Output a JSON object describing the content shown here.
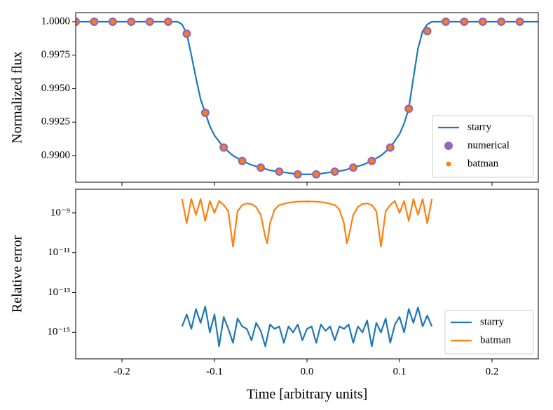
{
  "chart_data": [
    {
      "type": "line",
      "ylabel": "Normalized flux",
      "xlim": [
        -0.25,
        0.25
      ],
      "ylim": [
        0.98801,
        1.00068
      ],
      "yticks": [
        {
          "value": 0.99,
          "label": "0.9900"
        },
        0.9925,
        {
          "value": 0.995,
          "label": "0.9950"
        },
        0.9975,
        {
          "value": 1.0,
          "label": "1.0000"
        }
      ],
      "legend": "lower right",
      "series": [
        {
          "name": "starry",
          "color": "#1f77b4",
          "style": "line",
          "x": [
            -0.25,
            -0.2,
            -0.15,
            -0.14,
            -0.135,
            -0.13,
            -0.125,
            -0.12,
            -0.115,
            -0.11,
            -0.105,
            -0.1,
            -0.09,
            -0.08,
            -0.07,
            -0.06,
            -0.05,
            -0.04,
            -0.03,
            -0.02,
            -0.01,
            0,
            0.01,
            0.02,
            0.03,
            0.04,
            0.05,
            0.06,
            0.07,
            0.08,
            0.09,
            0.1,
            0.105,
            0.11,
            0.115,
            0.12,
            0.125,
            0.13,
            0.135,
            0.14,
            0.15,
            0.2,
            0.25
          ],
          "values": [
            1.0,
            1.0,
            1.0,
            1.0,
            0.9998,
            0.9991,
            0.9975,
            0.9958,
            0.9942,
            0.9932,
            0.9922,
            0.9915,
            0.9906,
            0.99,
            0.9896,
            0.9893,
            0.9891,
            0.9889,
            0.9888,
            0.9887,
            0.9886,
            0.9886,
            0.9886,
            0.9887,
            0.9888,
            0.9889,
            0.9891,
            0.9893,
            0.9896,
            0.99,
            0.9906,
            0.9916,
            0.9924,
            0.9935,
            0.9958,
            0.998,
            0.9993,
            0.9998,
            1.0,
            1.0,
            1.0,
            1.0,
            1.0
          ]
        },
        {
          "name": "numerical",
          "color": "#9467bd",
          "style": "marker",
          "size": 6,
          "x": [
            -0.25,
            -0.23,
            -0.21,
            -0.19,
            -0.17,
            -0.15,
            -0.13,
            -0.11,
            -0.09,
            -0.07,
            -0.05,
            -0.03,
            -0.01,
            0.01,
            0.03,
            0.05,
            0.07,
            0.09,
            0.11,
            0.13,
            0.15,
            0.17,
            0.19,
            0.21,
            0.23
          ],
          "values": [
            1.0,
            1.0,
            1.0,
            1.0,
            1.0,
            1.0,
            0.9991,
            0.9932,
            0.9906,
            0.9896,
            0.9891,
            0.9888,
            0.9886,
            0.9886,
            0.9888,
            0.9891,
            0.9896,
            0.9906,
            0.9935,
            0.9993,
            1.0,
            1.0,
            1.0,
            1.0,
            1.0
          ]
        },
        {
          "name": "batman",
          "color": "#ff7f0e",
          "style": "marker",
          "size": 3.5,
          "x": [
            -0.25,
            -0.23,
            -0.21,
            -0.19,
            -0.17,
            -0.15,
            -0.13,
            -0.11,
            -0.09,
            -0.07,
            -0.05,
            -0.03,
            -0.01,
            0.01,
            0.03,
            0.05,
            0.07,
            0.09,
            0.11,
            0.13,
            0.15,
            0.17,
            0.19,
            0.21,
            0.23
          ],
          "values": [
            1.0,
            1.0,
            1.0,
            1.0,
            1.0,
            1.0,
            0.9991,
            0.9932,
            0.9906,
            0.9896,
            0.9891,
            0.9888,
            0.9886,
            0.9886,
            0.9888,
            0.9891,
            0.9896,
            0.9906,
            0.9935,
            0.9993,
            1.0,
            1.0,
            1.0,
            1.0,
            1.0
          ]
        }
      ]
    },
    {
      "type": "line",
      "ylabel": "Relative error",
      "xlabel": "Time [arbitrary units]",
      "yscale": "log",
      "xlim": [
        -0.25,
        0.25
      ],
      "ylim": [
        4.7e-17,
        1.55e-08
      ],
      "xticks": [
        -0.2,
        -0.1,
        {
          "value": 0,
          "label": "0.0"
        },
        0.1,
        0.2
      ],
      "yticks": [
        {
          "value": 1e-15,
          "label": "10⁻¹⁵"
        },
        {
          "value": 1e-13,
          "label": "10⁻¹³"
        },
        {
          "value": 1e-11,
          "label": "10⁻¹¹"
        },
        {
          "value": 1e-09,
          "label": "10⁻⁹"
        }
      ],
      "legend": "lower right",
      "series": [
        {
          "name": "starry",
          "color": "#1f77b4",
          "style": "line",
          "x": [
            -0.135,
            -0.13,
            -0.125,
            -0.12,
            -0.115,
            -0.11,
            -0.105,
            -0.1,
            -0.095,
            -0.09,
            -0.085,
            -0.08,
            -0.075,
            -0.07,
            -0.065,
            -0.06,
            -0.055,
            -0.05,
            -0.045,
            -0.04,
            -0.035,
            -0.03,
            -0.025,
            -0.02,
            -0.015,
            -0.01,
            -0.005,
            0,
            0.005,
            0.01,
            0.015,
            0.02,
            0.025,
            0.03,
            0.035,
            0.04,
            0.045,
            0.05,
            0.055,
            0.06,
            0.065,
            0.07,
            0.075,
            0.08,
            0.085,
            0.09,
            0.095,
            0.1,
            0.105,
            0.11,
            0.115,
            0.12,
            0.125,
            0.13,
            0.135
          ],
          "values": [
            2e-15,
            8e-15,
            1.5e-15,
            1.5e-14,
            3e-15,
            2e-14,
            1e-15,
            8e-15,
            2e-16,
            6e-15,
            1.5e-15,
            3e-16,
            5e-15,
            2e-15,
            1.5e-15,
            4e-16,
            3e-15,
            1.2e-15,
            2e-16,
            2.5e-15,
            1.5e-15,
            2e-15,
            3e-16,
            2e-15,
            1e-15,
            2.5e-15,
            4e-16,
            1.5e-15,
            2e-15,
            3e-16,
            2.5e-15,
            1.2e-15,
            2e-15,
            4e-16,
            2e-15,
            1.5e-15,
            2.5e-15,
            3e-16,
            2e-15,
            1e-15,
            4e-15,
            2e-16,
            3e-15,
            1e-15,
            5e-15,
            3e-16,
            2.5e-15,
            6e-15,
            1e-15,
            1.5e-14,
            3e-15,
            1.8e-14,
            2e-15,
            7e-15,
            2e-15
          ]
        },
        {
          "name": "batman",
          "color": "#ff7f0e",
          "style": "line",
          "x": [
            -0.135,
            -0.13,
            -0.125,
            -0.12,
            -0.115,
            -0.11,
            -0.105,
            -0.1,
            -0.095,
            -0.09,
            -0.085,
            -0.08,
            -0.075,
            -0.07,
            -0.065,
            -0.06,
            -0.055,
            -0.05,
            -0.045,
            -0.043,
            -0.04,
            -0.035,
            -0.03,
            -0.02,
            -0.01,
            0,
            0.01,
            0.02,
            0.03,
            0.035,
            0.04,
            0.043,
            0.045,
            0.05,
            0.055,
            0.06,
            0.065,
            0.07,
            0.075,
            0.08,
            0.085,
            0.09,
            0.095,
            0.1,
            0.105,
            0.11,
            0.115,
            0.12,
            0.125,
            0.13,
            0.135
          ],
          "values": [
            5e-09,
            3e-10,
            5e-09,
            8e-10,
            5e-09,
            4e-10,
            4e-09,
            1e-09,
            4e-09,
            2.5e-09,
            1.2e-09,
            2e-11,
            1.2e-09,
            2.5e-09,
            3e-09,
            2.8e-09,
            2e-09,
            8e-10,
            6e-11,
            3e-11,
            3e-10,
            1.5e-09,
            2.5e-09,
            3.3e-09,
            3.7e-09,
            3.8e-09,
            3.7e-09,
            3.3e-09,
            2.5e-09,
            1.5e-09,
            3e-10,
            3e-11,
            6e-11,
            8e-10,
            2e-09,
            2.8e-09,
            3e-09,
            2.5e-09,
            1.2e-09,
            2e-11,
            1.2e-09,
            2.5e-09,
            4e-09,
            1e-09,
            4e-09,
            4e-10,
            5e-09,
            8e-10,
            5e-09,
            3e-10,
            5e-09
          ]
        }
      ]
    }
  ]
}
